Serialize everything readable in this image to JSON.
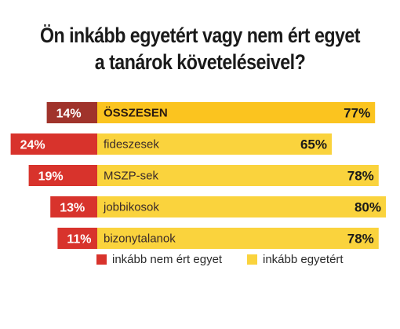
{
  "title_line1": "Ön inkább egyetért vagy nem ért egyet",
  "title_line2": "a tanárok követeléseivel?",
  "colors": {
    "disagree": "#d8332c",
    "disagree_total": "#a0332b",
    "agree": "#fad33d",
    "agree_total": "#fbc41f"
  },
  "chart_data": {
    "type": "bar",
    "orientation": "horizontal-diverging",
    "title": "Ön inkább egyetért vagy nem ért egyet a tanárok követeléseivel?",
    "categories": [
      "ÖSSZESEN",
      "fideszesek",
      "MSZP-sek",
      "jobbikosok",
      "bizonytalanok"
    ],
    "series": [
      {
        "name": "inkább nem ért egyet",
        "values": [
          14,
          24,
          19,
          13,
          11
        ],
        "labels": [
          "14%",
          "24%",
          "19%",
          "13%",
          "11%"
        ]
      },
      {
        "name": "inkább egyetért",
        "values": [
          77,
          65,
          78,
          80,
          78
        ],
        "labels": [
          "77%",
          "65%",
          "78%",
          "80%",
          "78%"
        ]
      }
    ],
    "legend": [
      "inkább nem ért egyet",
      "inkább egyetért"
    ],
    "legend_position": "bottom",
    "grid": false
  }
}
